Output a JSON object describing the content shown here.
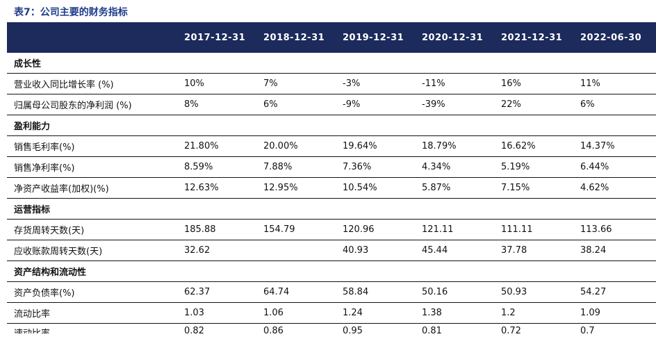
{
  "caption": "表7：公司主要的财务指标",
  "headers": [
    "2017-12-31",
    "2018-12-31",
    "2019-12-31",
    "2020-12-31",
    "2021-12-31",
    "2022-06-30"
  ],
  "rows": [
    {
      "label": "成长性",
      "section": true,
      "values": [
        "",
        "",
        "",
        "",
        "",
        ""
      ]
    },
    {
      "label": "营业收入同比增长率 (%)",
      "values": [
        "10%",
        "7%",
        "-3%",
        "-11%",
        "16%",
        "11%"
      ]
    },
    {
      "label": "归属母公司股东的净利润 (%)",
      "values": [
        "8%",
        "6%",
        "-9%",
        "-39%",
        "22%",
        "6%"
      ]
    },
    {
      "label": "盈利能力",
      "section": true,
      "values": [
        "",
        "",
        "",
        "",
        "",
        ""
      ]
    },
    {
      "label": "销售毛利率(%)",
      "values": [
        "21.80%",
        "20.00%",
        "19.64%",
        "18.79%",
        "16.62%",
        "14.37%"
      ]
    },
    {
      "label": "销售净利率(%)",
      "values": [
        "8.59%",
        "7.88%",
        "7.36%",
        "4.34%",
        "5.19%",
        "6.44%"
      ]
    },
    {
      "label": "净资产收益率(加权)(%)",
      "values": [
        "12.63%",
        "12.95%",
        "10.54%",
        "5.87%",
        "7.15%",
        "4.62%"
      ]
    },
    {
      "label": "运营指标",
      "section": true,
      "values": [
        "",
        "",
        "",
        "",
        "",
        ""
      ]
    },
    {
      "label": "存货周转天数(天)",
      "values": [
        "185.88",
        "154.79",
        "120.96",
        "121.11",
        "111.11",
        "113.66"
      ]
    },
    {
      "label": "应收账款周转天数(天)",
      "values": [
        "32.62",
        "",
        "40.93",
        "45.44",
        "37.78",
        "38.24"
      ]
    },
    {
      "label": "资产结构和流动性",
      "section": true,
      "values": [
        "",
        "",
        "",
        "",
        "",
        ""
      ]
    },
    {
      "label": "资产负债率(%)",
      "values": [
        "62.37",
        "64.74",
        "58.84",
        "50.16",
        "50.93",
        "54.27"
      ]
    },
    {
      "label": "流动比率",
      "values": [
        "1.03",
        "1.06",
        "1.24",
        "1.38",
        "1.2",
        "1.09"
      ]
    },
    {
      "label": "速动比率",
      "cut": true,
      "values": [
        "0.82",
        "0.86",
        "0.95",
        "0.81",
        "0.72",
        "0.7"
      ]
    }
  ]
}
